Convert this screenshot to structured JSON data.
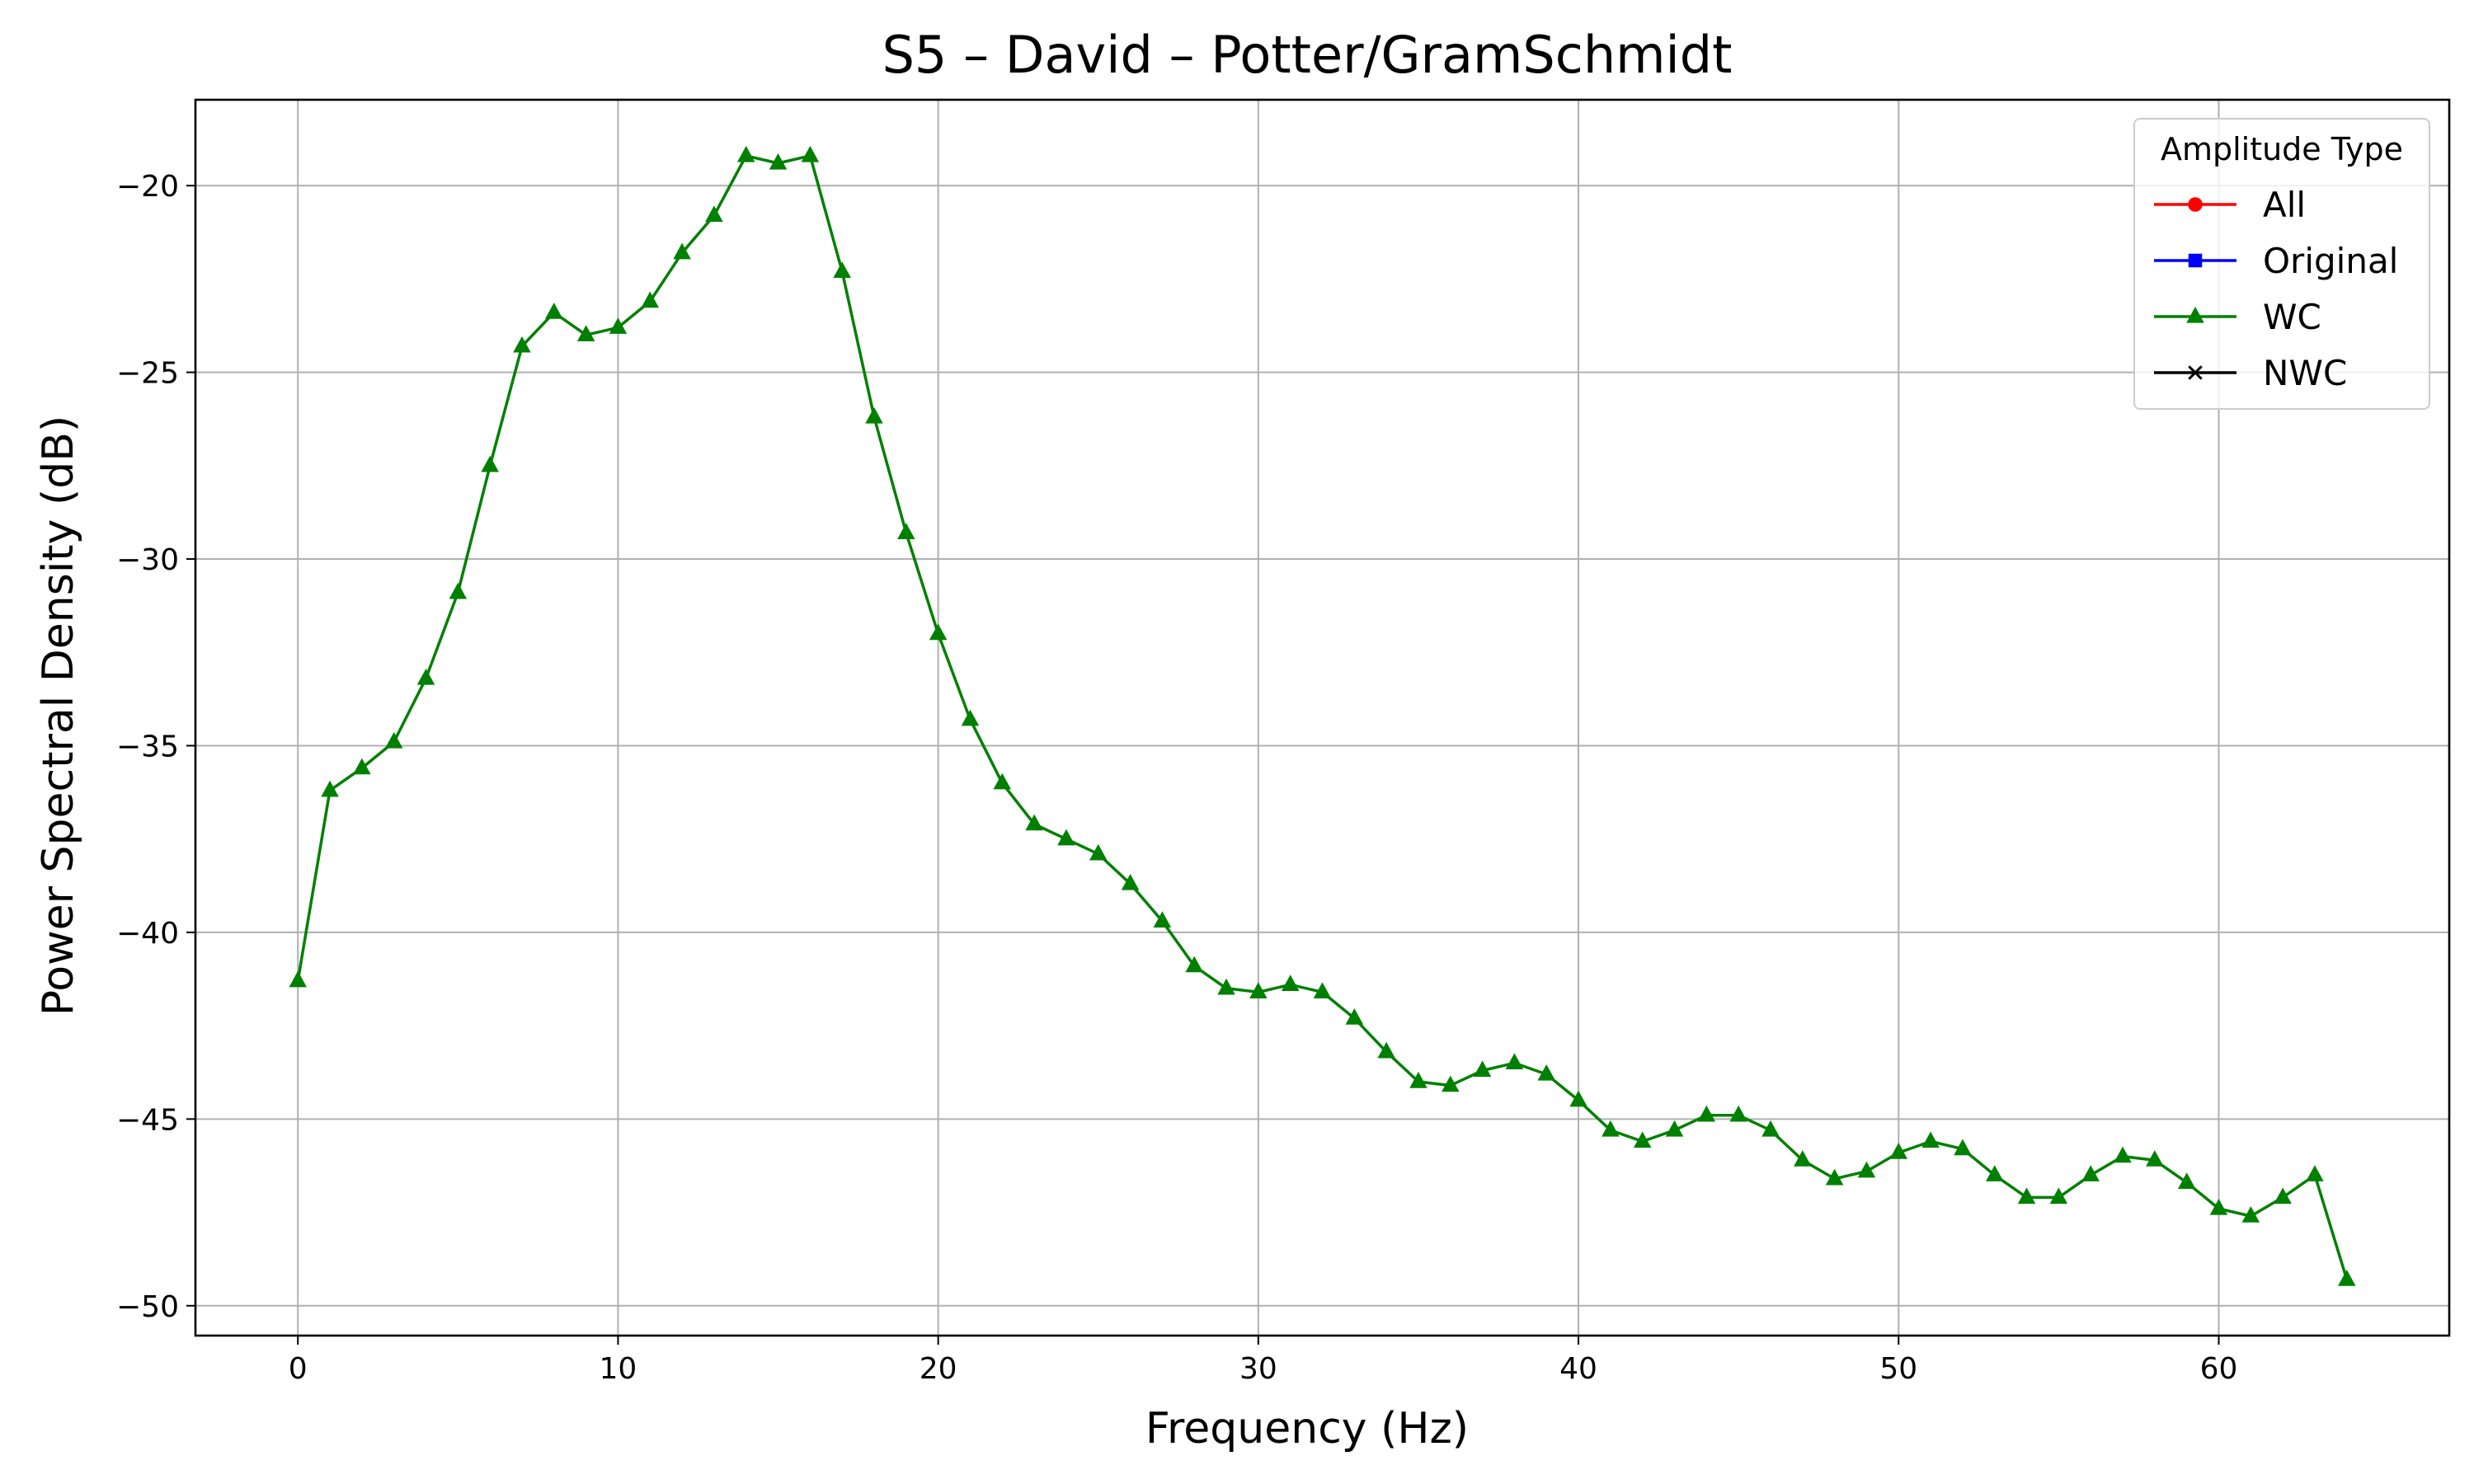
{
  "chart_data": {
    "type": "line",
    "title": "S5 – David – Potter/GramSchmidt",
    "xlabel": "Frequency (Hz)",
    "ylabel": "Power Spectral Density (dB)",
    "xlim": [
      -3.2,
      67.2
    ],
    "ylim": [
      -50.8,
      -17.7
    ],
    "xticks": [
      0,
      10,
      20,
      30,
      40,
      50,
      60
    ],
    "yticks": [
      -20,
      -25,
      -30,
      -35,
      -40,
      -45,
      -50
    ],
    "xtick_labels": [
      "0",
      "10",
      "20",
      "30",
      "40",
      "50",
      "60"
    ],
    "ytick_labels": [
      "−20",
      "−25",
      "−30",
      "−35",
      "−40",
      "−45",
      "−50"
    ],
    "grid": true,
    "legend": {
      "title": "Amplitude Type",
      "placement": "top-right",
      "entries": [
        {
          "label": "All",
          "color": "#ff0000",
          "marker": "circle"
        },
        {
          "label": "Original",
          "color": "#0000ff",
          "marker": "square"
        },
        {
          "label": "WC",
          "color": "#008000",
          "marker": "triangle"
        },
        {
          "label": "NWC",
          "color": "#000000",
          "marker": "x"
        }
      ]
    },
    "series": [
      {
        "name": "WC",
        "color": "#008000",
        "marker": "triangle",
        "x": [
          0,
          1,
          2,
          3,
          4,
          5,
          6,
          7,
          8,
          9,
          10,
          11,
          12,
          13,
          14,
          15,
          16,
          17,
          18,
          19,
          20,
          21,
          22,
          23,
          24,
          25,
          26,
          27,
          28,
          29,
          30,
          31,
          32,
          33,
          34,
          35,
          36,
          37,
          38,
          39,
          40,
          41,
          42,
          43,
          44,
          45,
          46,
          47,
          48,
          49,
          50,
          51,
          52,
          53,
          54,
          55,
          56,
          57,
          58,
          59,
          60,
          61,
          62,
          63,
          64
        ],
        "y": [
          -41.3,
          -36.2,
          -35.6,
          -34.9,
          -33.2,
          -30.9,
          -27.5,
          -24.3,
          -23.4,
          -24.0,
          -23.8,
          -23.1,
          -21.8,
          -20.8,
          -19.2,
          -19.4,
          -19.2,
          -22.3,
          -26.2,
          -29.3,
          -32.0,
          -34.3,
          -36.0,
          -37.1,
          -37.5,
          -37.9,
          -38.7,
          -39.7,
          -40.9,
          -41.5,
          -41.6,
          -41.4,
          -41.6,
          -42.3,
          -43.2,
          -44.0,
          -44.1,
          -43.7,
          -43.5,
          -43.8,
          -44.5,
          -45.3,
          -45.6,
          -45.3,
          -44.9,
          -44.9,
          -45.3,
          -46.1,
          -46.6,
          -46.4,
          -45.9,
          -45.6,
          -45.8,
          -46.5,
          -47.1,
          -47.1,
          -46.5,
          -46.0,
          -46.1,
          -46.7,
          -47.4,
          -47.6,
          -47.1,
          -46.5,
          -49.3
        ]
      }
    ]
  }
}
